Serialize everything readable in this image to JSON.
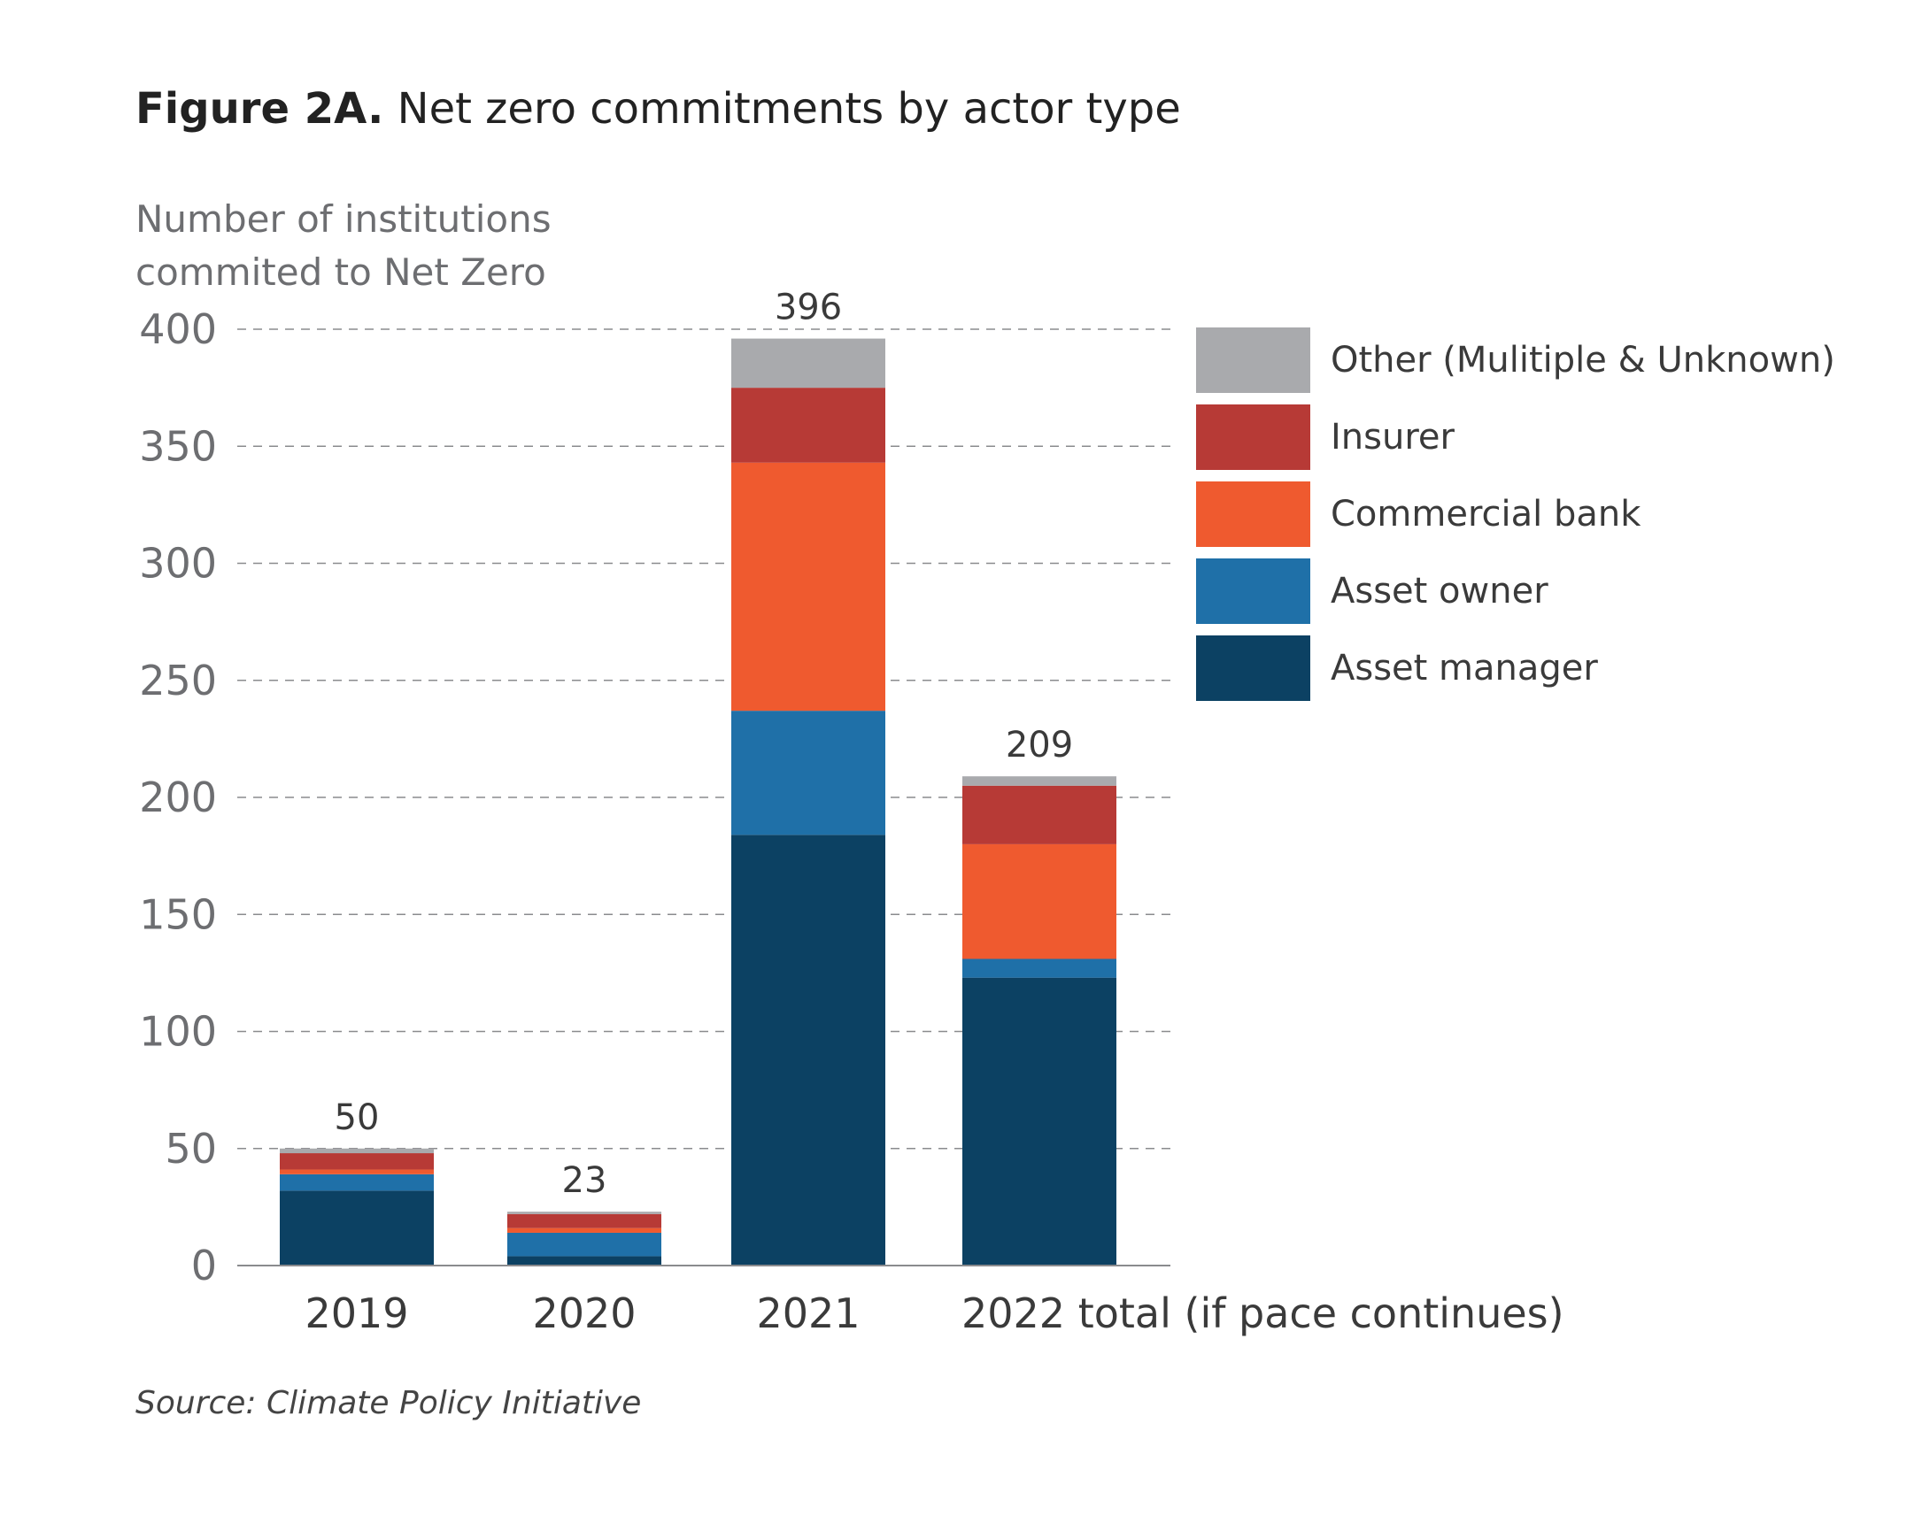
{
  "title": {
    "figure": "Figure 2A.",
    "text": "Net zero commitments by actor type"
  },
  "source": "Source: Climate Policy Initiative",
  "chart_data": {
    "type": "bar",
    "stacked": true,
    "ylabel_line1": "Number of institutions",
    "ylabel_line2": "commited to Net Zero",
    "ylim": [
      0,
      400
    ],
    "yticks": [
      0,
      50,
      100,
      150,
      200,
      250,
      300,
      350,
      400
    ],
    "grid": "horizontal-dashed",
    "legend_placement": "right",
    "categories": [
      "2019",
      "2020",
      "2021",
      "2022 total (if pace continues)"
    ],
    "totals": [
      50,
      23,
      396,
      209
    ],
    "series": [
      {
        "name": "Asset manager",
        "color": "#0c4163",
        "values": [
          32,
          4,
          184,
          123
        ]
      },
      {
        "name": "Asset owner",
        "color": "#1f70a8",
        "values": [
          7,
          10,
          53,
          8
        ]
      },
      {
        "name": "Commercial bank",
        "color": "#ef5a2f",
        "values": [
          2,
          2,
          106,
          49
        ]
      },
      {
        "name": "Insurer",
        "color": "#b73a36",
        "values": [
          7,
          6,
          32,
          25
        ]
      },
      {
        "name": "Other (Mulitiple & Unknown)",
        "color": "#a9aaad",
        "values": [
          2,
          1,
          21,
          4
        ]
      }
    ]
  }
}
